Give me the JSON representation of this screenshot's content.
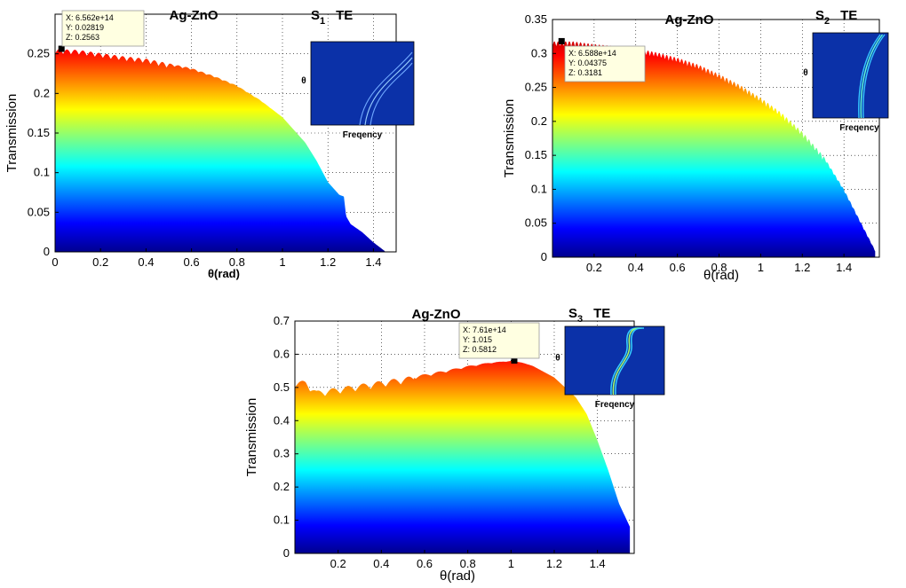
{
  "chart_data": [
    {
      "type": "area",
      "title": "Ag-ZnO",
      "label_main": "S",
      "label_sub": "1",
      "label_mode": "TE",
      "xlabel": "θ(rad)",
      "ylabel": "Transmission",
      "xlim": [
        0,
        1.5
      ],
      "ylim": [
        0,
        0.3
      ],
      "xticks": [
        0,
        0.2,
        0.4,
        0.6,
        0.8,
        1,
        1.2,
        1.4
      ],
      "xtick_labels": [
        "0",
        "0.2",
        "0.4",
        "0.6",
        "0.8",
        "1",
        "1.2",
        "1.4"
      ],
      "yticks": [
        0,
        0.05,
        0.1,
        0.15,
        0.2,
        0.25
      ],
      "ytick_labels": [
        "0",
        "0.05",
        "0.1",
        "0.15",
        "0.2",
        "0.25"
      ],
      "grid": true,
      "colormap": "jet",
      "x": [
        0,
        0.1,
        0.2,
        0.3,
        0.4,
        0.5,
        0.6,
        0.7,
        0.8,
        0.9,
        1.0,
        1.1,
        1.15,
        1.2,
        1.25,
        1.27,
        1.28,
        1.3,
        1.35,
        1.4,
        1.45
      ],
      "y": [
        0.256,
        0.255,
        0.251,
        0.247,
        0.244,
        0.238,
        0.232,
        0.222,
        0.21,
        0.192,
        0.17,
        0.138,
        0.115,
        0.088,
        0.072,
        0.07,
        0.045,
        0.035,
        0.025,
        0.012,
        0.001
      ],
      "oscillation": {
        "amplitude": 0.006,
        "period": 0.035,
        "until": 0.5
      },
      "datatip": {
        "lines": [
          "X: 6.562e+14",
          "Y: 0.02819",
          "Z: 0.2563"
        ],
        "x": 0.02819,
        "y": 0.2563
      },
      "inset": {
        "ylabel": "θ",
        "xlabel": "Freqency",
        "curve": "right"
      }
    },
    {
      "type": "area",
      "title": "Ag-ZnO",
      "label_main": "S",
      "label_sub": "2",
      "label_mode": "TE",
      "xlabel": "θ(rad)",
      "ylabel": "Transmission",
      "xlim": [
        0,
        1.57
      ],
      "ylim": [
        0,
        0.35
      ],
      "xticks": [
        0.2,
        0.4,
        0.6,
        0.8,
        1,
        1.2,
        1.4
      ],
      "xtick_labels": [
        "0.2",
        "0.4",
        "0.6",
        "0.8",
        "1",
        "1.2",
        "1.4"
      ],
      "yticks": [
        0,
        0.05,
        0.1,
        0.15,
        0.2,
        0.25,
        0.3,
        0.35
      ],
      "ytick_labels": [
        "0",
        "0.05",
        "0.1",
        "0.15",
        "0.2",
        "0.25",
        "0.3",
        "0.35"
      ],
      "grid": true,
      "colormap": "jet",
      "x": [
        0,
        0.1,
        0.2,
        0.3,
        0.4,
        0.5,
        0.6,
        0.7,
        0.8,
        0.9,
        1.0,
        1.1,
        1.2,
        1.3,
        1.4,
        1.45,
        1.5,
        1.55
      ],
      "y": [
        0.318,
        0.318,
        0.314,
        0.311,
        0.308,
        0.302,
        0.294,
        0.284,
        0.27,
        0.254,
        0.235,
        0.213,
        0.185,
        0.15,
        0.1,
        0.07,
        0.04,
        0.01
      ],
      "oscillation": {
        "amplitude": 0.008,
        "period": 0.018,
        "until": 1.3
      },
      "datatip": {
        "lines": [
          "X: 6.588e+14",
          "Y: 0.04375",
          "Z: 0.3181"
        ],
        "x": 0.04375,
        "y": 0.3181
      },
      "inset": {
        "ylabel": "θ",
        "xlabel": "Freqency",
        "curve": "steep"
      }
    },
    {
      "type": "area",
      "title": "Ag-ZnO",
      "label_main": "S",
      "label_sub": "3",
      "label_mode": "TE",
      "xlabel": "θ(rad)",
      "ylabel": "Transmission",
      "xlim": [
        0,
        1.57
      ],
      "ylim": [
        0,
        0.7
      ],
      "xticks": [
        0.2,
        0.4,
        0.6,
        0.8,
        1,
        1.2,
        1.4
      ],
      "xtick_labels": [
        "0.2",
        "0.4",
        "0.6",
        "0.8",
        "1",
        "1.2",
        "1.4"
      ],
      "yticks": [
        0,
        0.1,
        0.2,
        0.3,
        0.4,
        0.5,
        0.6,
        0.7
      ],
      "ytick_labels": [
        "0",
        "0.1",
        "0.2",
        "0.3",
        "0.4",
        "0.5",
        "0.6",
        "0.7"
      ],
      "grid": true,
      "colormap": "jet",
      "x": [
        0,
        0.05,
        0.1,
        0.2,
        0.3,
        0.4,
        0.5,
        0.6,
        0.7,
        0.8,
        0.9,
        1.0,
        1.05,
        1.1,
        1.2,
        1.3,
        1.35,
        1.4,
        1.45,
        1.5,
        1.55
      ],
      "y": [
        0.52,
        0.52,
        0.49,
        0.5,
        0.51,
        0.52,
        0.53,
        0.54,
        0.552,
        0.565,
        0.575,
        0.58,
        0.575,
        0.565,
        0.53,
        0.47,
        0.42,
        0.34,
        0.25,
        0.15,
        0.08
      ],
      "oscillation": {
        "amplitude": 0.02,
        "period": 0.07,
        "until": 0.55
      },
      "datatip": {
        "lines": [
          "X: 7.61e+14",
          "Y: 1.015",
          "Z: 0.5812"
        ],
        "x": 1.015,
        "y": 0.5812
      },
      "inset": {
        "ylabel": "θ",
        "xlabel": "Freqency",
        "curve": "s-shape"
      }
    }
  ]
}
